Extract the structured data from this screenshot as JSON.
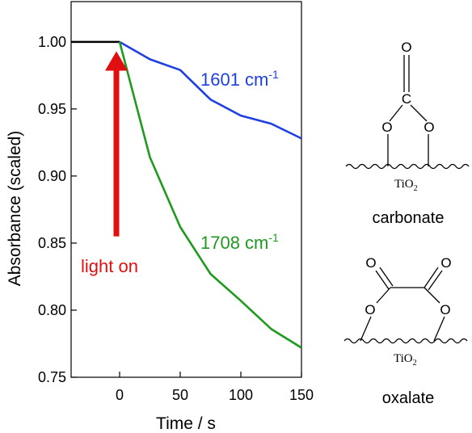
{
  "chart_data": {
    "type": "line",
    "xlabel": "Time / s",
    "ylabel": "Absorbance  (scaled)",
    "xlim": [
      -40,
      150
    ],
    "ylim": [
      0.75,
      1.03
    ],
    "xticks": [
      0,
      50,
      100,
      150
    ],
    "yticks": [
      0.75,
      0.8,
      0.85,
      0.9,
      0.95,
      1.0
    ],
    "xtick_labels": [
      "0",
      "50",
      "100",
      "150"
    ],
    "ytick_labels": [
      "0.75",
      "0.80",
      "0.85",
      "0.90",
      "0.95",
      "1.00"
    ],
    "grid": false,
    "baseline": {
      "x": [
        -40,
        0
      ],
      "y": [
        1.0,
        1.0
      ],
      "color": "#000000"
    },
    "series": [
      {
        "name": "1601 cm-1",
        "color": "#1f3fe0",
        "x": [
          0,
          25,
          50,
          75,
          100,
          125,
          150
        ],
        "y": [
          1.0,
          0.987,
          0.979,
          0.957,
          0.945,
          0.939,
          0.928
        ]
      },
      {
        "name": "1708 cm-1",
        "color": "#1e9a1e",
        "x": [
          0,
          25,
          50,
          75,
          100,
          125,
          150
        ],
        "y": [
          1.0,
          0.914,
          0.862,
          0.827,
          0.807,
          0.786,
          0.772
        ]
      }
    ],
    "series_labels": [
      {
        "base": "1601 cm",
        "sup": "-1",
        "color": "#1f3fe0"
      },
      {
        "base": "1708 cm",
        "sup": "-1",
        "color": "#1e9a1e"
      }
    ],
    "annotation": {
      "text": "light on",
      "arrow_x": 0,
      "arrow_from_y": 0.855,
      "arrow_to_y": 0.993,
      "color": "#e01010"
    }
  },
  "structures": [
    {
      "name": "carbonate",
      "O": "O",
      "C": "C",
      "surface_base": "TiO",
      "surface_sub": "2"
    },
    {
      "name": "oxalate",
      "O": "O",
      "surface_base": "TiO",
      "surface_sub": "2"
    }
  ]
}
